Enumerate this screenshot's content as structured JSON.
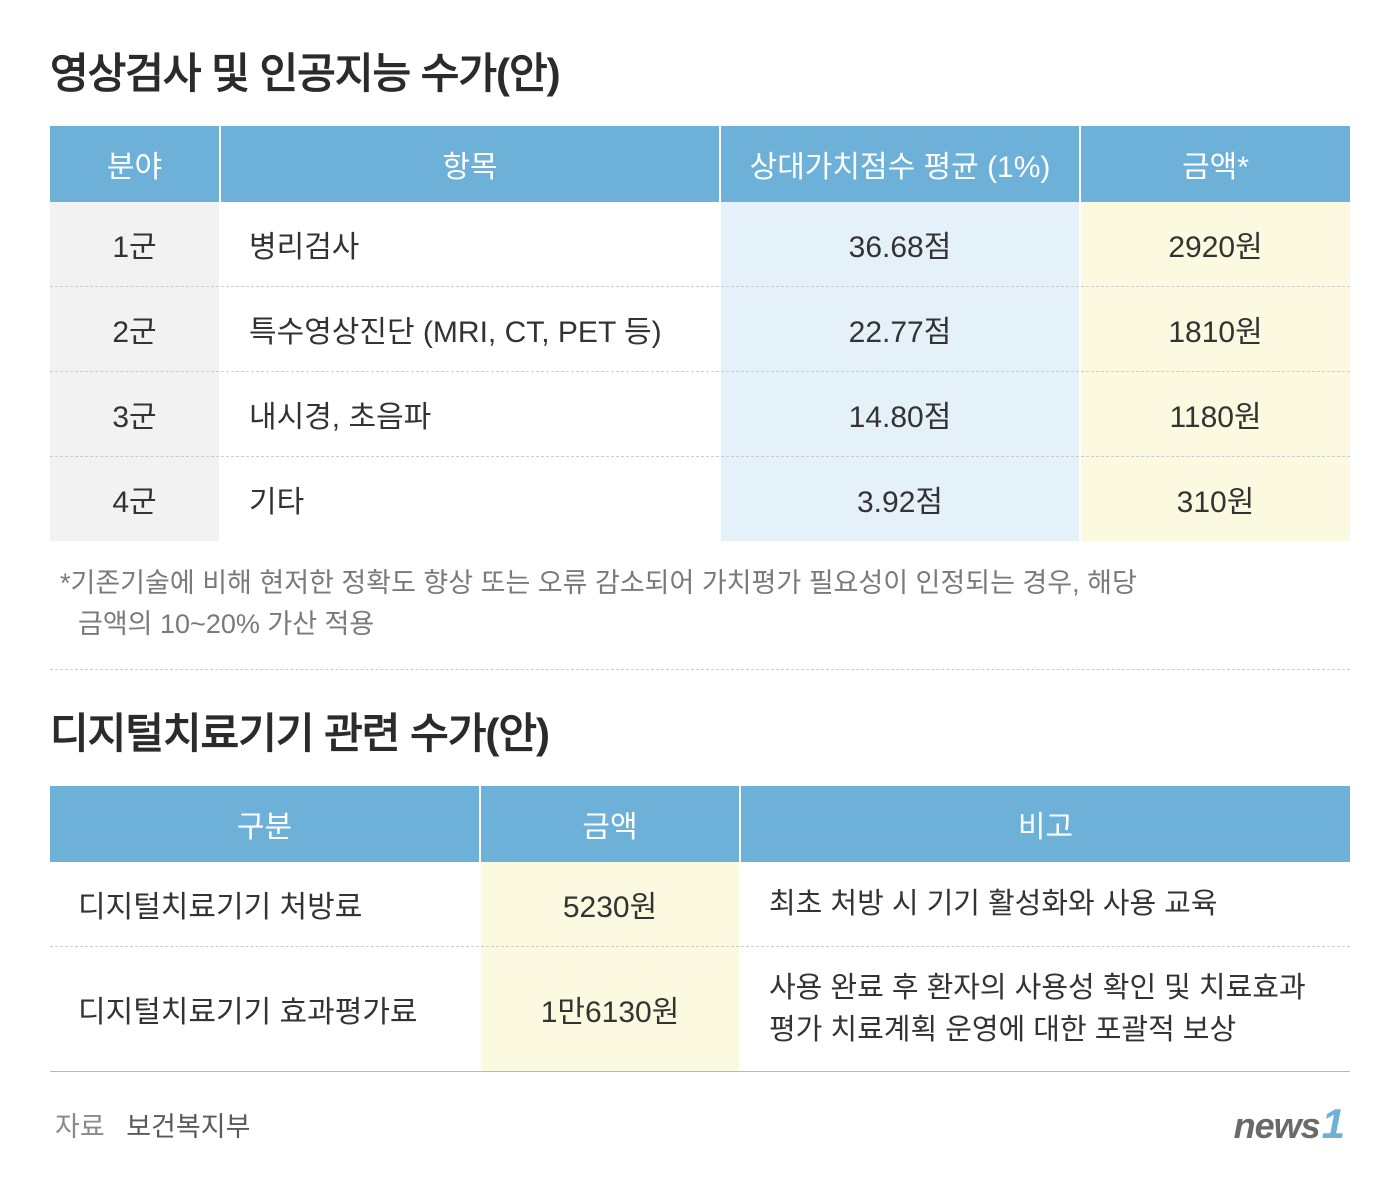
{
  "colors": {
    "header_bg": "#6db1d9",
    "header_text": "#ffffff",
    "col_gray_bg": "#f2f2f2",
    "col_blue_bg": "#e5f1f8",
    "col_yellow_bg": "#fbf9df",
    "body_bg": "#ffffff",
    "text": "#2b2b2b",
    "muted": "#7a7a7a",
    "divider": "#cccccc"
  },
  "section1": {
    "title": "영상검사 및 인공지능 수가(안)",
    "headers": [
      "분야",
      "항목",
      "상대가치점수 평균 (1%)",
      "금액*"
    ],
    "rows": [
      {
        "group": "1군",
        "item": "병리검사",
        "score": "36.68점",
        "amount": "2920원"
      },
      {
        "group": "2군",
        "item": "특수영상진단 (MRI, CT, PET 등)",
        "score": "22.77점",
        "amount": "1810원"
      },
      {
        "group": "3군",
        "item": "내시경, 초음파",
        "score": "14.80점",
        "amount": "1180원"
      },
      {
        "group": "4군",
        "item": "기타",
        "score": "3.92점",
        "amount": "310원"
      }
    ],
    "footnote_line1": "*기존기술에 비해 현저한 정확도 향상 또는 오류 감소되어 가치평가 필요성이 인정되는 경우, 해당",
    "footnote_line2": "금액의 10~20% 가산 적용"
  },
  "section2": {
    "title": "디지털치료기기 관련 수가(안)",
    "headers": [
      "구분",
      "금액",
      "비고"
    ],
    "rows": [
      {
        "category": "디지털치료기기 처방료",
        "amount": "5230원",
        "note": "최초 처방 시 기기 활성화와 사용 교육"
      },
      {
        "category": "디지털치료기기 효과평가료",
        "amount": "1만6130원",
        "note": "사용 완료 후 환자의 사용성 확인 및 치료효과 평가 치료계획 운영에 대한 포괄적 보상"
      }
    ]
  },
  "source": {
    "label": "자료",
    "value": "보건복지부"
  },
  "logo": {
    "text": "news",
    "num": "1"
  }
}
